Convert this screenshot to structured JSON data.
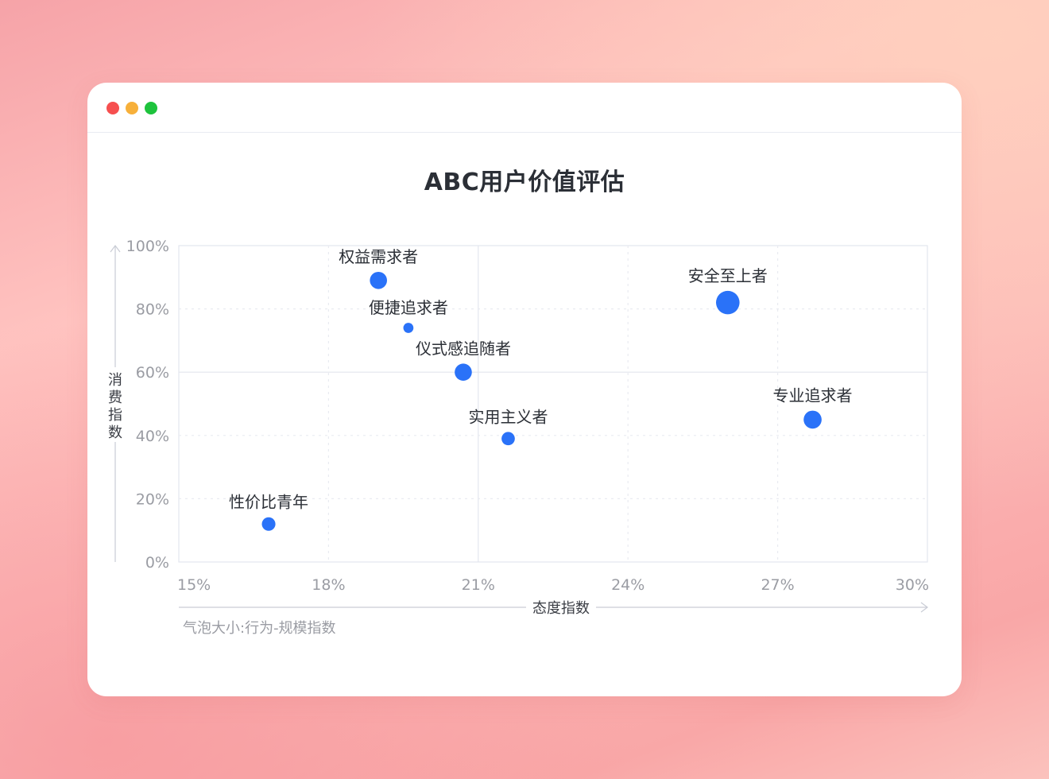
{
  "window": {
    "controls": [
      "close",
      "minimize",
      "maximize"
    ],
    "colors": {
      "close": "#f64f4f",
      "minimize": "#f7b03a",
      "maximize": "#1ec33d"
    }
  },
  "chart_data": {
    "type": "scatter",
    "title": "ABC用户价值评估",
    "xlabel": "态度指数",
    "ylabel": "消费指数",
    "size_note": "气泡大小:行为-规模指数",
    "xlim": [
      0.15,
      0.3
    ],
    "ylim": [
      0,
      1.0
    ],
    "x_ticks": [
      "15%",
      "18%",
      "21%",
      "24%",
      "27%",
      "30%"
    ],
    "x_tick_values": [
      0.15,
      0.18,
      0.21,
      0.24,
      0.27,
      0.3
    ],
    "y_ticks": [
      "0%",
      "20%",
      "40%",
      "60%",
      "80%",
      "100%"
    ],
    "y_tick_values": [
      0,
      0.2,
      0.4,
      0.6,
      0.8,
      1.0
    ],
    "grid": true,
    "bubble_color": "#2a72f8",
    "points": [
      {
        "label": "性价比青年",
        "x": 0.168,
        "y": 0.12,
        "size": 2.5
      },
      {
        "label": "权益需求者",
        "x": 0.19,
        "y": 0.89,
        "size": 4.0
      },
      {
        "label": "便捷追求者",
        "x": 0.196,
        "y": 0.74,
        "size": 1.4
      },
      {
        "label": "仪式感追随者",
        "x": 0.207,
        "y": 0.6,
        "size": 4.0
      },
      {
        "label": "实用主义者",
        "x": 0.216,
        "y": 0.39,
        "size": 2.4
      },
      {
        "label": "安全至上者",
        "x": 0.26,
        "y": 0.82,
        "size": 7.5
      },
      {
        "label": "专业追求者",
        "x": 0.277,
        "y": 0.45,
        "size": 4.4
      }
    ]
  }
}
